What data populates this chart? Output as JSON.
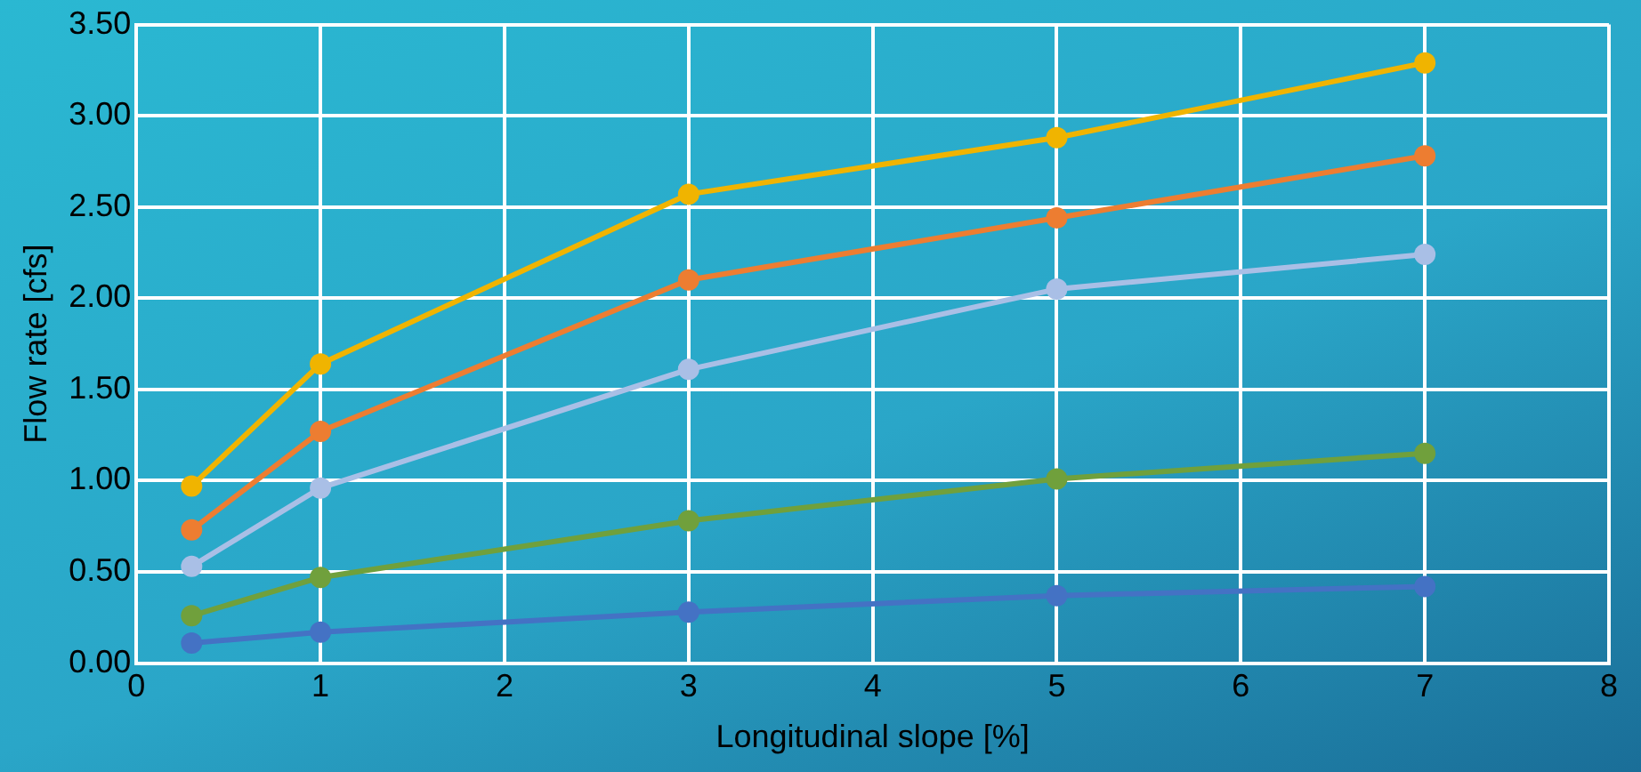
{
  "chart_data": {
    "type": "line",
    "xlabel": "Longitudinal slope [%]",
    "ylabel": "Flow rate [cfs]",
    "x": [
      0.3,
      1,
      3,
      5,
      7
    ],
    "series": [
      {
        "color": "#4472c4",
        "values": [
          0.11,
          0.17,
          0.28,
          0.37,
          0.42
        ]
      },
      {
        "color": "#70a03c",
        "values": [
          0.26,
          0.47,
          0.78,
          1.01,
          1.15
        ]
      },
      {
        "color": "#a9bfe6",
        "values": [
          0.53,
          0.96,
          1.61,
          2.05,
          2.24
        ]
      },
      {
        "color": "#ed7d31",
        "values": [
          0.73,
          1.27,
          2.1,
          2.44,
          2.78
        ]
      },
      {
        "color": "#f0b400",
        "values": [
          0.97,
          1.64,
          2.57,
          2.88,
          3.29
        ]
      }
    ],
    "xlim": [
      0,
      8
    ],
    "xticks": [
      0,
      1,
      2,
      3,
      4,
      5,
      6,
      7,
      8
    ],
    "ylim": [
      0,
      3.5
    ],
    "yticks": [
      {
        "value": 0,
        "label": "0.00"
      },
      {
        "value": 0.5,
        "label": "0.50"
      },
      {
        "value": 1,
        "label": "1.00"
      },
      {
        "value": 1.5,
        "label": "1.50"
      },
      {
        "value": 2,
        "label": "2.00"
      },
      {
        "value": 2.5,
        "label": "2.50"
      },
      {
        "value": 3,
        "label": "3.00"
      },
      {
        "value": 3.5,
        "label": "3.50"
      }
    ],
    "grid": true,
    "marker": "circle",
    "legend": false
  }
}
